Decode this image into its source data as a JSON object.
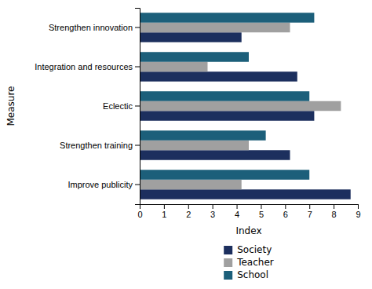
{
  "chart_data": {
    "type": "bar",
    "orientation": "horizontal",
    "categories": [
      "Strengthen innovation",
      "Integration and resources",
      "Eclectic",
      "Strengthen training",
      "Improve publicity"
    ],
    "series": [
      {
        "name": "Society",
        "color": "#1C2F5E",
        "values": [
          4.2,
          6.5,
          7.2,
          6.2,
          8.7
        ]
      },
      {
        "name": "Teacher",
        "color": "#A0A0A0",
        "values": [
          6.2,
          2.8,
          8.3,
          4.5,
          4.2
        ]
      },
      {
        "name": "School",
        "color": "#1C5F7A",
        "values": [
          7.2,
          4.5,
          7.0,
          5.2,
          7.0
        ]
      }
    ],
    "xlabel": "Index",
    "ylabel": "Measure",
    "xlim": [
      0,
      9
    ],
    "xticks": [
      0,
      1,
      2,
      3,
      4,
      5,
      6,
      7,
      8,
      9
    ],
    "grid": false,
    "legend": "bottom"
  }
}
